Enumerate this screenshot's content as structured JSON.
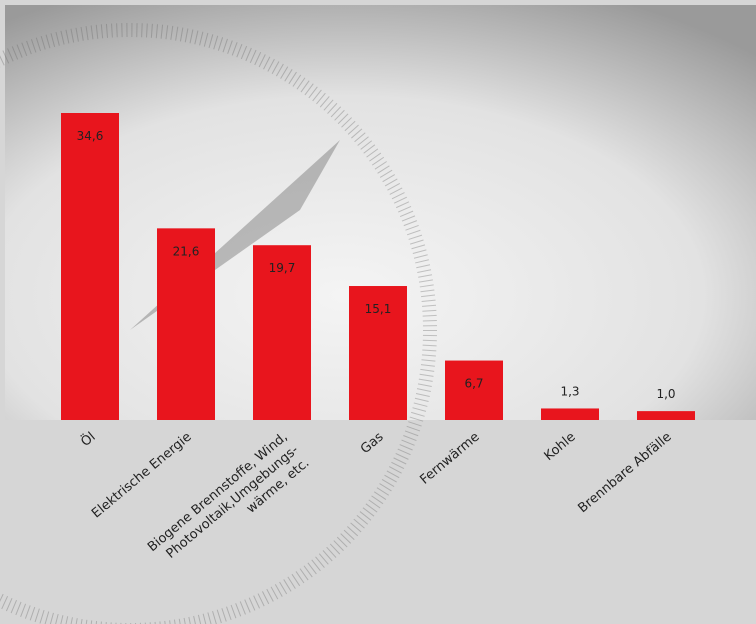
{
  "chart_data": {
    "type": "bar",
    "categories": [
      "Öl",
      "Elektrische Energie",
      "Biogene Brennstoffe, Wind,\nPhotovoltaik,Umgebungs-\nwärme, etc.",
      "Gas",
      "Fernwärme",
      "Kohle",
      "Brennbare Abfälle"
    ],
    "values": [
      34.6,
      21.6,
      19.7,
      15.1,
      6.7,
      1.3,
      1.0
    ],
    "value_labels": [
      "34,6",
      "21,6",
      "19,7",
      "15,1",
      "6,7",
      "1,3",
      "1,0"
    ],
    "color": "#e8151d"
  }
}
